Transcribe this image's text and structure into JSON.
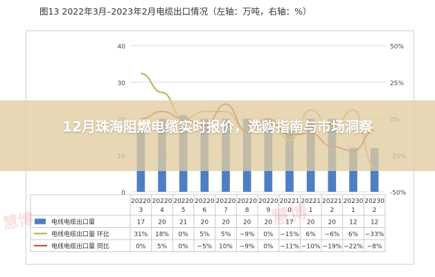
{
  "figure_title": "图13  2022年3月–2023年2月电缆出口情况（左轴：万吨，右轴：%）",
  "banner_text": "12月珠海阻燃电缆实时报价，选购指南与市场洞察",
  "chart_data": {
    "type": "bar",
    "categories": [
      "202203",
      "202204",
      "202205",
      "202206",
      "202207",
      "202208",
      "202209",
      "202210",
      "202211",
      "202212",
      "202301",
      "202302"
    ],
    "tick_labels_line1": [
      "20220",
      "20220",
      "20220",
      "20220",
      "20220",
      "20220",
      "20220",
      "20221",
      "20221",
      "20221",
      "20230",
      "20230"
    ],
    "tick_labels_line2": [
      "3",
      "4",
      "5",
      "6",
      "7",
      "8",
      "9",
      "0",
      "1",
      "2",
      "1",
      "2"
    ],
    "ylim_left": [
      0,
      40
    ],
    "yticks_left": [
      "0",
      "10",
      "20",
      "30",
      "40"
    ],
    "ylim_right": [
      -50,
      50
    ],
    "yticks_right": [
      "-50%",
      "-25%",
      "0%",
      "25%",
      "50%"
    ],
    "series": [
      {
        "name": "电线电缆出口量",
        "axis": "left",
        "kind": "bar",
        "color": "#4e7fc4",
        "values": [
          17,
          20,
          21,
          20,
          20,
          20,
          20,
          17,
          20,
          20,
          12,
          12
        ],
        "labels": [
          "17",
          "20",
          "21",
          "20",
          "20",
          "20",
          "20",
          "17",
          "20",
          "20",
          "12",
          "12"
        ]
      },
      {
        "name": "电线电缆出口量  环比",
        "axis": "right",
        "kind": "line",
        "color": "#a8b844",
        "values": [
          31,
          18,
          0,
          5,
          5,
          -9,
          0,
          -15,
          6,
          -6,
          6,
          -33
        ],
        "labels": [
          "31%",
          "18%",
          "0%",
          "5%",
          "5%",
          "−9%",
          "0%",
          "−15%",
          "6%",
          "−6%",
          "6%",
          "−33%"
        ]
      },
      {
        "name": "电线电缆出口量  同比",
        "axis": "right",
        "kind": "line",
        "color": "#c0392b",
        "values": [
          0,
          5,
          0,
          -5,
          10,
          -9,
          0,
          -11,
          -10,
          -19,
          -22,
          -8
        ],
        "labels": [
          "0%",
          "5%",
          "0%",
          "−5%",
          "10%",
          "−9%",
          "0%",
          "−11%",
          "−10%",
          "−19%",
          "−22%",
          "−8%"
        ]
      }
    ],
    "grid": true,
    "legend_position": "bottom-table"
  },
  "watermark_text": "慧博"
}
